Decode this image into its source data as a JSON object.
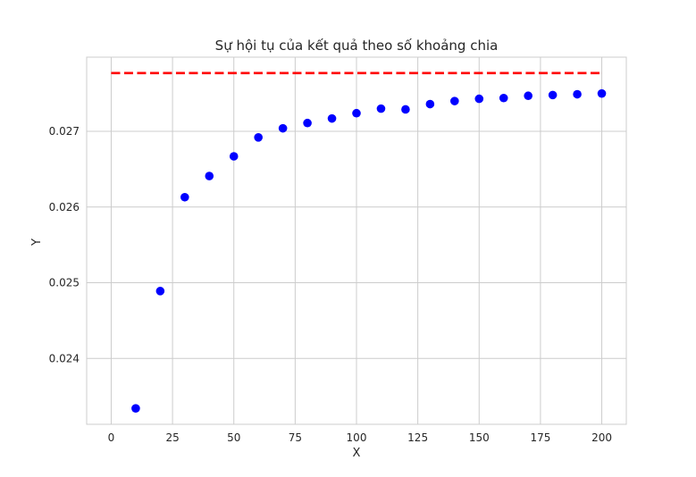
{
  "chart_data": {
    "type": "scatter",
    "title": "Sự hội tụ của kết quả theo số khoảng chia",
    "xlabel": "X",
    "ylabel": "Y",
    "xlim": [
      -10,
      210
    ],
    "ylim": [
      0.02313,
      0.02798
    ],
    "grid": true,
    "x_ticks": [
      0,
      25,
      50,
      75,
      100,
      125,
      150,
      175,
      200
    ],
    "x_tick_labels": [
      "0",
      "25",
      "50",
      "75",
      "100",
      "125",
      "150",
      "175",
      "200"
    ],
    "y_ticks": [
      0.024,
      0.025,
      0.026,
      0.027
    ],
    "y_tick_labels": [
      "0.024",
      "0.025",
      "0.026",
      "0.027"
    ],
    "series": [
      {
        "style": "points",
        "color": "#0000ff",
        "x": [
          10,
          20,
          30,
          40,
          50,
          60,
          70,
          80,
          90,
          100,
          110,
          120,
          130,
          140,
          150,
          160,
          170,
          180,
          190,
          200
        ],
        "values": [
          0.02334,
          0.02489,
          0.02613,
          0.02641,
          0.02667,
          0.02692,
          0.02704,
          0.02711,
          0.02717,
          0.02724,
          0.0273,
          0.02729,
          0.02736,
          0.0274,
          0.02743,
          0.02744,
          0.02747,
          0.02748,
          0.02749,
          0.0275
        ]
      },
      {
        "style": "dashed-line",
        "color": "#ff0000",
        "x": [
          0,
          200
        ],
        "values": [
          0.02777,
          0.02777
        ]
      }
    ]
  }
}
